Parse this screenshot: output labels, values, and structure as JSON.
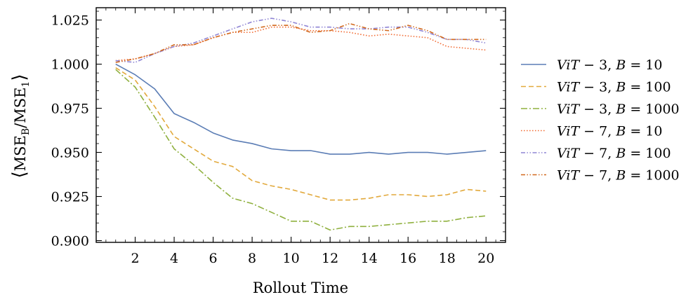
{
  "chart_data": {
    "type": "line",
    "xlabel": "Rollout Time",
    "ylabel": "⟨MSE_B / MSE_1⟩",
    "ylabel_parts": {
      "open": "⟨",
      "mse_b": "MSE",
      "sub_b": "B",
      "slash": "/",
      "mse_1": "MSE",
      "sub_1": "1",
      "close": "⟩"
    },
    "xlim": [
      0,
      21
    ],
    "ylim": [
      0.899,
      1.032
    ],
    "xticks": [
      2,
      4,
      6,
      8,
      10,
      12,
      14,
      16,
      18,
      20
    ],
    "yticks": [
      0.9,
      0.925,
      0.95,
      0.975,
      1.0,
      1.025
    ],
    "ytick_labels": [
      "0.900",
      "0.925",
      "0.950",
      "0.975",
      "1.000",
      "1.025"
    ],
    "legend_position": "right-outside",
    "x": [
      1,
      2,
      3,
      4,
      5,
      6,
      7,
      8,
      9,
      10,
      11,
      12,
      13,
      14,
      15,
      16,
      17,
      18,
      19,
      20
    ],
    "series": [
      {
        "name": "ViT − 3, B = 10",
        "color": "#5b7db5",
        "dash": "solid",
        "values": [
          1.0,
          0.994,
          0.986,
          0.972,
          0.967,
          0.961,
          0.957,
          0.955,
          0.952,
          0.951,
          0.951,
          0.949,
          0.949,
          0.95,
          0.949,
          0.95,
          0.95,
          0.949,
          0.95,
          0.951
        ]
      },
      {
        "name": "ViT − 3, B = 100",
        "color": "#e2a93c",
        "dash": "dashed",
        "values": [
          0.998,
          0.991,
          0.976,
          0.959,
          0.952,
          0.945,
          0.942,
          0.934,
          0.931,
          0.929,
          0.926,
          0.923,
          0.923,
          0.924,
          0.926,
          0.926,
          0.925,
          0.926,
          0.929,
          0.928
        ]
      },
      {
        "name": "ViT − 3, B = 1000",
        "color": "#8fb03e",
        "dash": "dashdot",
        "values": [
          0.997,
          0.987,
          0.97,
          0.952,
          0.943,
          0.933,
          0.924,
          0.921,
          0.916,
          0.911,
          0.911,
          0.906,
          0.908,
          0.908,
          0.909,
          0.91,
          0.911,
          0.911,
          0.913,
          0.914
        ]
      },
      {
        "name": "ViT − 7, B = 10",
        "color": "#f2703a",
        "dash": "dotted",
        "values": [
          1.002,
          1.003,
          1.006,
          1.01,
          1.011,
          1.015,
          1.018,
          1.018,
          1.021,
          1.021,
          1.019,
          1.019,
          1.018,
          1.016,
          1.017,
          1.016,
          1.015,
          1.01,
          1.009,
          1.008
        ]
      },
      {
        "name": "ViT − 7, B = 100",
        "color": "#8f85d4",
        "dash": "dashdotdot",
        "values": [
          1.002,
          1.001,
          1.006,
          1.01,
          1.012,
          1.016,
          1.02,
          1.024,
          1.026,
          1.024,
          1.021,
          1.021,
          1.02,
          1.02,
          1.021,
          1.021,
          1.018,
          1.014,
          1.014,
          1.012
        ]
      },
      {
        "name": "ViT − 7, B = 1000",
        "color": "#d2691e",
        "dash": "dashdotdot",
        "values": [
          1.001,
          1.003,
          1.006,
          1.011,
          1.011,
          1.015,
          1.018,
          1.02,
          1.022,
          1.022,
          1.018,
          1.019,
          1.023,
          1.02,
          1.019,
          1.022,
          1.019,
          1.014,
          1.014,
          1.014
        ]
      }
    ],
    "legend_entries": [
      {
        "model": "ViT",
        "size": "3",
        "b": "10"
      },
      {
        "model": "ViT",
        "size": "3",
        "b": "100"
      },
      {
        "model": "ViT",
        "size": "3",
        "b": "1000"
      },
      {
        "model": "ViT",
        "size": "7",
        "b": "10"
      },
      {
        "model": "ViT",
        "size": "7",
        "b": "100"
      },
      {
        "model": "ViT",
        "size": "7",
        "b": "1000"
      }
    ]
  }
}
